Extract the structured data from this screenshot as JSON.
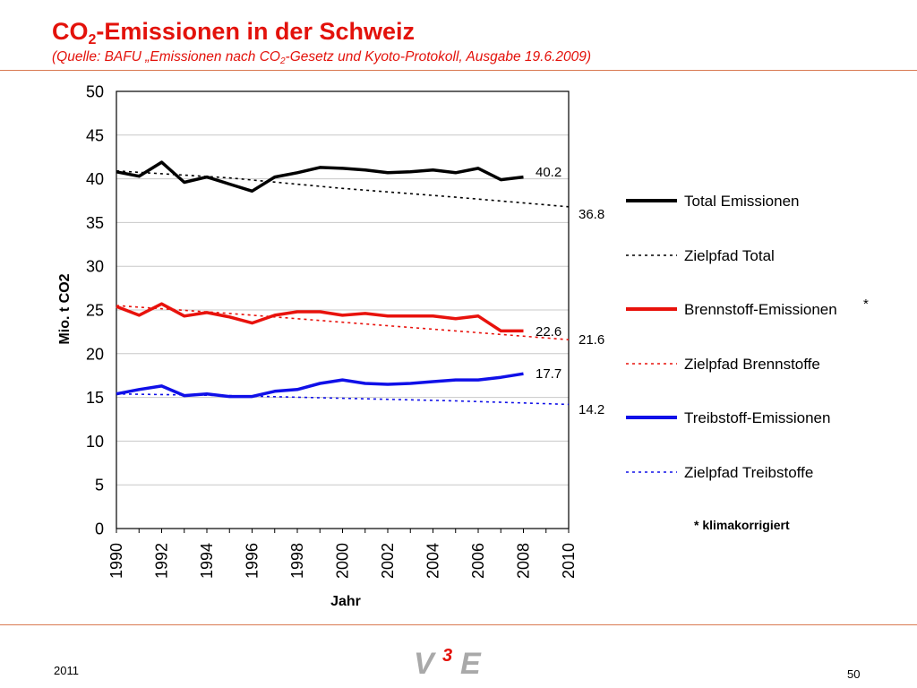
{
  "slide": {
    "title_pre": "CO",
    "title_sub": "2",
    "title_post": "-Emissionen in der Schweiz",
    "subtitle_pre": "(Quelle: BAFU „Emissionen nach CO",
    "subtitle_sub": "2",
    "subtitle_post": "-Gesetz und Kyoto-Protokoll, Ausgabe 19.6.2009)",
    "year": "2011",
    "page_number": "50",
    "logo_text": "V3E",
    "colors": {
      "title": "#e3120b",
      "rule": "#d97a52"
    }
  },
  "chart_data": {
    "type": "line",
    "title": "",
    "xlabel": "Jahr",
    "ylabel": "Mio. t CO2",
    "xlim": [
      1990,
      2010
    ],
    "ylim": [
      0,
      50
    ],
    "x_ticks": [
      1990,
      1992,
      1994,
      1996,
      1998,
      2000,
      2002,
      2004,
      2006,
      2008,
      2010
    ],
    "y_ticks": [
      0,
      5,
      10,
      15,
      20,
      25,
      30,
      35,
      40,
      45,
      50
    ],
    "grid": true,
    "legend": "right",
    "footnote": "* klimakorrigiert",
    "series": [
      {
        "name": "Total Emissionen",
        "color": "#000000",
        "style": "solid",
        "x": [
          1990,
          1991,
          1992,
          1993,
          1994,
          1995,
          1996,
          1997,
          1998,
          1999,
          2000,
          2001,
          2002,
          2003,
          2004,
          2005,
          2006,
          2007,
          2008
        ],
        "y": [
          40.8,
          40.3,
          41.9,
          39.6,
          40.2,
          39.4,
          38.6,
          40.2,
          40.7,
          41.3,
          41.2,
          41.0,
          40.7,
          40.8,
          41.0,
          40.7,
          41.2,
          39.9,
          40.2
        ],
        "end_label": "40.2"
      },
      {
        "name": "Zielpfad Total",
        "color": "#000000",
        "style": "dotted",
        "x": [
          1990,
          1995,
          2000,
          2005,
          2010
        ],
        "y": [
          40.9,
          40.1,
          38.9,
          37.9,
          36.8
        ],
        "end_label": "36.8"
      },
      {
        "name": "Brennstoff-Emissionen",
        "suffix": "*",
        "color": "#e8120c",
        "style": "solid",
        "x": [
          1990,
          1991,
          1992,
          1993,
          1994,
          1995,
          1996,
          1997,
          1998,
          1999,
          2000,
          2001,
          2002,
          2003,
          2004,
          2005,
          2006,
          2007,
          2008
        ],
        "y": [
          25.4,
          24.4,
          25.7,
          24.3,
          24.7,
          24.2,
          23.5,
          24.4,
          24.8,
          24.8,
          24.4,
          24.6,
          24.3,
          24.3,
          24.3,
          24.0,
          24.3,
          22.6,
          22.6
        ],
        "end_label": "22.6"
      },
      {
        "name": "Zielpfad Brennstoffe",
        "color": "#e8120c",
        "style": "dotted",
        "x": [
          1990,
          1995,
          2000,
          2005,
          2010
        ],
        "y": [
          25.5,
          24.6,
          23.6,
          22.6,
          21.6
        ],
        "end_label": "21.6"
      },
      {
        "name": "Treibstoff-Emissionen",
        "color": "#1010e8",
        "style": "solid",
        "x": [
          1990,
          1991,
          1992,
          1993,
          1994,
          1995,
          1996,
          1997,
          1998,
          1999,
          2000,
          2001,
          2002,
          2003,
          2004,
          2005,
          2006,
          2007,
          2008
        ],
        "y": [
          15.4,
          15.9,
          16.3,
          15.2,
          15.4,
          15.1,
          15.1,
          15.7,
          15.9,
          16.6,
          17.0,
          16.6,
          16.5,
          16.6,
          16.8,
          17.0,
          17.0,
          17.3,
          17.7
        ],
        "end_label": "17.7"
      },
      {
        "name": "Zielpfad Treibstoffe",
        "color": "#1010e8",
        "style": "dotted",
        "x": [
          1990,
          1995,
          2000,
          2005,
          2010
        ],
        "y": [
          15.4,
          15.2,
          14.9,
          14.6,
          14.2
        ],
        "end_label": "14.2"
      }
    ]
  }
}
